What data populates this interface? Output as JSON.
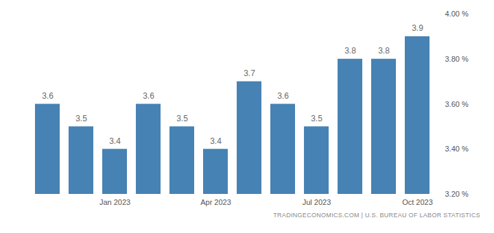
{
  "chart_data": {
    "type": "bar",
    "caption": "TRADINGECONOMICS.COM | U.S. BUREAU OF LABOR STATISTICS",
    "categories": [
      null,
      null,
      "Jan 2023",
      null,
      null,
      "Apr 2023",
      null,
      null,
      "Jul 2023",
      null,
      null,
      "Oct 2023"
    ],
    "values": [
      3.6,
      3.5,
      3.4,
      3.6,
      3.5,
      3.4,
      3.7,
      3.6,
      3.5,
      3.8,
      3.8,
      3.9
    ],
    "color": "#4682b4",
    "ylim": [
      3.2,
      4.0
    ],
    "yticks": [
      {
        "value": 3.2,
        "label": "3.20 %"
      },
      {
        "value": 3.4,
        "label": "3.40 %"
      },
      {
        "value": 3.6,
        "label": "3.60 %"
      },
      {
        "value": 3.8,
        "label": "3.80 %"
      },
      {
        "value": 4.0,
        "label": "4.00 %"
      }
    ],
    "grid": false,
    "data_labels": true
  }
}
